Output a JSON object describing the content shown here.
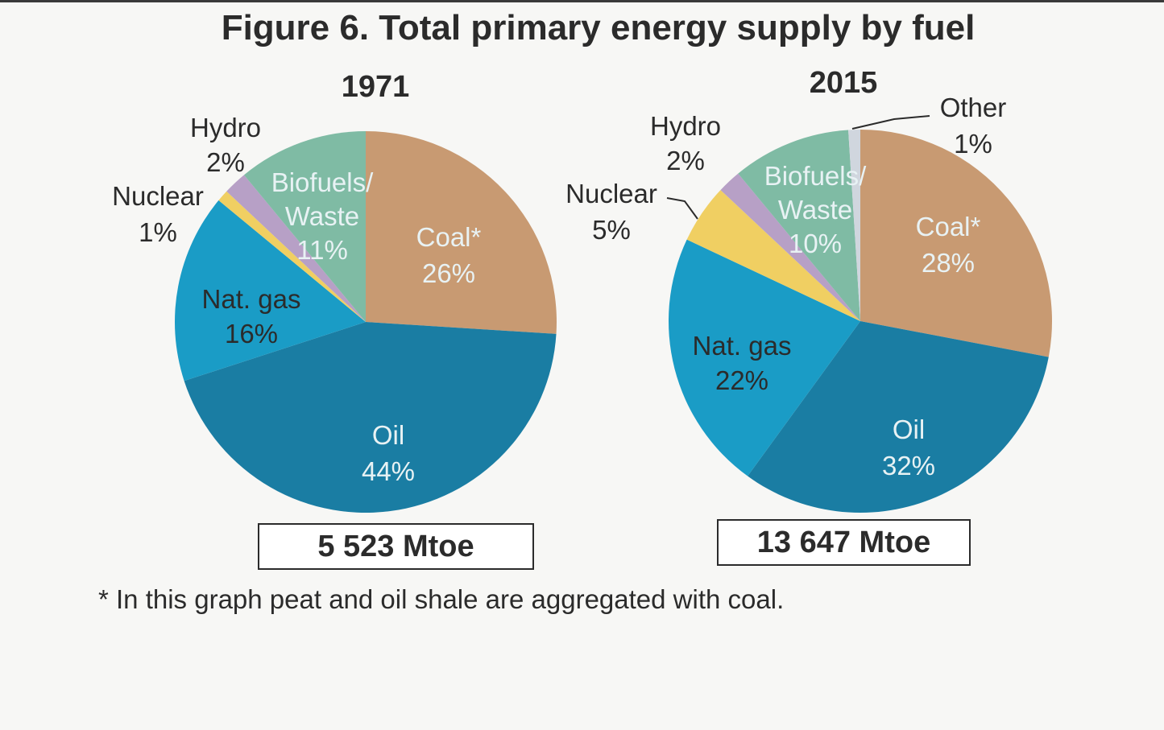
{
  "title": "Figure 6. Total primary energy supply by fuel",
  "footnote": "* In this graph peat and oil shale are aggregated with coal.",
  "colors": {
    "Coal": "#c89a72",
    "Oil": "#1a7da3",
    "Nat. gas": "#1a9cc6",
    "Nuclear": "#f0cf62",
    "Hydro": "#b7a0c6",
    "Biofuels/Waste": "#7fbba4",
    "Other": "#d0d6de"
  },
  "chart_data": [
    {
      "type": "pie",
      "title": "1971",
      "total_label": "5 523 Mtoe",
      "slices": [
        {
          "name": "Coal",
          "label": "Coal*",
          "value": 26
        },
        {
          "name": "Oil",
          "label": "Oil",
          "value": 44
        },
        {
          "name": "Nat. gas",
          "label": "Nat. gas",
          "value": 16
        },
        {
          "name": "Nuclear",
          "label": "Nuclear",
          "value": 1
        },
        {
          "name": "Hydro",
          "label": "Hydro",
          "value": 2
        },
        {
          "name": "Biofuels/Waste",
          "label": "Biofuels/ Waste",
          "value": 11
        }
      ]
    },
    {
      "type": "pie",
      "title": "2015",
      "total_label": "13 647 Mtoe",
      "slices": [
        {
          "name": "Coal",
          "label": "Coal*",
          "value": 28
        },
        {
          "name": "Oil",
          "label": "Oil",
          "value": 32
        },
        {
          "name": "Nat. gas",
          "label": "Nat. gas",
          "value": 22
        },
        {
          "name": "Nuclear",
          "label": "Nuclear",
          "value": 5
        },
        {
          "name": "Hydro",
          "label": "Hydro",
          "value": 2
        },
        {
          "name": "Biofuels/Waste",
          "label": "Biofuels/ Waste",
          "value": 10
        },
        {
          "name": "Other",
          "label": "Other",
          "value": 1
        }
      ]
    }
  ]
}
